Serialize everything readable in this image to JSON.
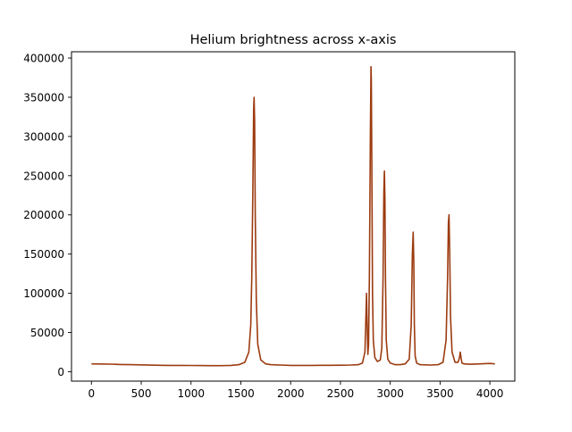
{
  "chart_data": {
    "type": "line",
    "title": "Helium brightness across x-axis",
    "xlabel": "",
    "ylabel": "",
    "xlim": [
      -200,
      4250
    ],
    "ylim": [
      -12000,
      408000
    ],
    "x_ticks": [
      0,
      500,
      1000,
      1500,
      2000,
      2500,
      3000,
      3500,
      4000
    ],
    "y_ticks": [
      0,
      50000,
      100000,
      150000,
      200000,
      250000,
      300000,
      350000,
      400000
    ],
    "grid": false,
    "legend": "none",
    "series": [
      {
        "color": "#9c3b10",
        "x": [
          0,
          100,
          200,
          300,
          400,
          500,
          600,
          700,
          800,
          900,
          1000,
          1100,
          1200,
          1300,
          1400,
          1480,
          1540,
          1580,
          1600,
          1610,
          1620,
          1628,
          1633,
          1638,
          1645,
          1655,
          1670,
          1700,
          1750,
          1800,
          1900,
          2000,
          2100,
          2200,
          2300,
          2400,
          2500,
          2600,
          2680,
          2720,
          2745,
          2755,
          2762,
          2768,
          2775,
          2782,
          2790,
          2800,
          2806,
          2810,
          2815,
          2822,
          2830,
          2845,
          2870,
          2900,
          2915,
          2928,
          2936,
          2941,
          2946,
          2952,
          2960,
          2975,
          3000,
          3050,
          3100,
          3150,
          3190,
          3210,
          3222,
          3230,
          3236,
          3242,
          3250,
          3265,
          3300,
          3400,
          3480,
          3530,
          3560,
          3575,
          3583,
          3590,
          3597,
          3605,
          3620,
          3650,
          3680,
          3695,
          3703,
          3710,
          3720,
          3740,
          3800,
          3900,
          4000,
          4050
        ],
        "y": [
          10000,
          9800,
          9600,
          9200,
          9000,
          8700,
          8400,
          8200,
          8000,
          8000,
          7900,
          7800,
          7700,
          7700,
          8000,
          9000,
          12000,
          25000,
          60000,
          120000,
          230000,
          335000,
          350000,
          320000,
          200000,
          90000,
          35000,
          15000,
          10000,
          9000,
          8500,
          8000,
          8000,
          8000,
          8100,
          8200,
          8300,
          8500,
          9000,
          11000,
          25000,
          70000,
          100000,
          60000,
          22000,
          35000,
          120000,
          300000,
          389000,
          370000,
          250000,
          100000,
          40000,
          18000,
          13000,
          15000,
          30000,
          120000,
          230000,
          256000,
          220000,
          120000,
          40000,
          16000,
          11000,
          9000,
          9000,
          10000,
          16000,
          60000,
          150000,
          178000,
          140000,
          60000,
          20000,
          11000,
          9000,
          8500,
          9000,
          12000,
          40000,
          120000,
          190000,
          200000,
          150000,
          70000,
          25000,
          12000,
          12000,
          18000,
          25000,
          18000,
          11000,
          10000,
          9500,
          10000,
          10500,
          10000
        ]
      }
    ]
  }
}
